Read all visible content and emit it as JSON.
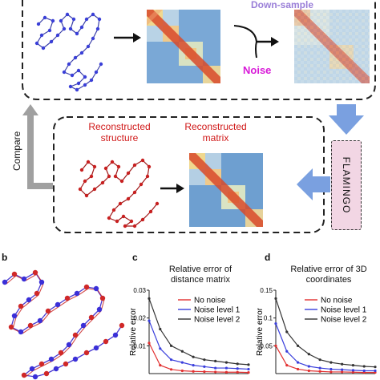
{
  "top_panel": {
    "downsample_label": "Down-sample",
    "noise_label": "Noise"
  },
  "middle_panel": {
    "reconstructed_structure_label": "Reconstructed\nstructure",
    "reconstructed_matrix_label": "Reconstructed\nmatrix",
    "flamingo_label": "FLAMINGO",
    "compare_label": "Compare"
  },
  "panel_b": {
    "letter": "b"
  },
  "panel_c": {
    "letter": "c",
    "title": "Relative error of distance matrix"
  },
  "panel_d": {
    "letter": "d",
    "title": "Relative error of 3D coordinates"
  },
  "colors": {
    "accent_blue_arrow": "#7aa0e0",
    "red_label": "#d01818",
    "purple_label": "#9a7fd8",
    "noise_magenta": "#d81ad8",
    "flamingo_fill": "#f2d6e4"
  },
  "chart_data": [
    {
      "type": "line",
      "title": "Relative error of distance matrix",
      "ylabel": "Relative error",
      "xlabel": "",
      "ylim": [
        0,
        0.03
      ],
      "yticks": [
        0.01,
        0.02,
        0.03
      ],
      "x": [
        1,
        2,
        3,
        4,
        5,
        6,
        7,
        8,
        9,
        10
      ],
      "legend_position": "top-right",
      "series": [
        {
          "name": "No noise",
          "color": "#e23030",
          "values": [
            0.011,
            0.003,
            0.0015,
            0.001,
            0.0008,
            0.0007,
            0.0006,
            0.0005,
            0.0005,
            0.0004
          ]
        },
        {
          "name": "Noise level 1",
          "color": "#3a3fdc",
          "values": [
            0.019,
            0.009,
            0.005,
            0.004,
            0.003,
            0.0025,
            0.002,
            0.002,
            0.0018,
            0.0016
          ]
        },
        {
          "name": "Noise level 2",
          "color": "#333333",
          "values": [
            0.027,
            0.016,
            0.01,
            0.008,
            0.006,
            0.005,
            0.0045,
            0.004,
            0.0035,
            0.0032
          ]
        }
      ]
    },
    {
      "type": "line",
      "title": "Relative error of 3D coordinates",
      "ylabel": "Relative error",
      "xlabel": "",
      "ylim": [
        0,
        0.15
      ],
      "yticks": [
        0.05,
        0.1,
        0.15
      ],
      "x": [
        1,
        2,
        3,
        4,
        5,
        6,
        7,
        8,
        9,
        10
      ],
      "legend_position": "top-right",
      "series": [
        {
          "name": "No noise",
          "color": "#e23030",
          "values": [
            0.05,
            0.015,
            0.008,
            0.005,
            0.004,
            0.003,
            0.003,
            0.0025,
            0.002,
            0.002
          ]
        },
        {
          "name": "Noise level 1",
          "color": "#3a3fdc",
          "values": [
            0.09,
            0.04,
            0.02,
            0.013,
            0.01,
            0.008,
            0.007,
            0.006,
            0.005,
            0.005
          ]
        },
        {
          "name": "Noise level 2",
          "color": "#333333",
          "values": [
            0.135,
            0.075,
            0.05,
            0.035,
            0.025,
            0.02,
            0.017,
            0.015,
            0.013,
            0.012
          ]
        }
      ]
    }
  ]
}
